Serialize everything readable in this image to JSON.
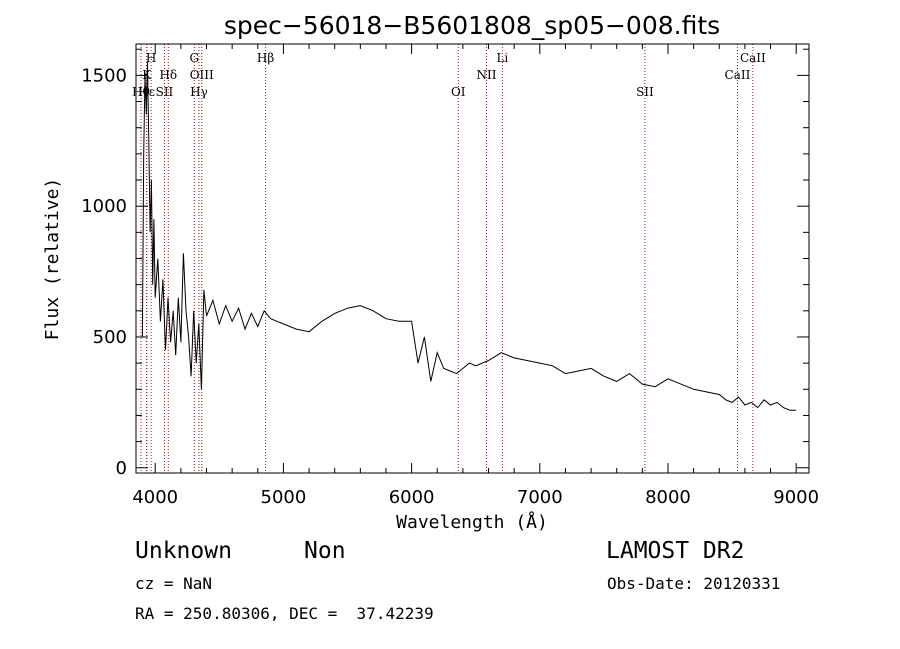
{
  "chart_data": {
    "type": "line",
    "title": "spec−56018−B5601808_sp05−008.fits",
    "xlabel": "Wavelength (Å)",
    "ylabel": "Flux (relative)",
    "xlim": [
      3850,
      9100
    ],
    "ylim": [
      -20,
      1620
    ],
    "x_ticks": [
      4000,
      5000,
      6000,
      7000,
      8000,
      9000
    ],
    "x_tick_labels": [
      "4000",
      "5000",
      "6000",
      "7000",
      "8000",
      "9000"
    ],
    "y_ticks": [
      0,
      500,
      1000,
      1500
    ],
    "y_tick_labels": [
      "0",
      "500",
      "1000",
      "1500"
    ],
    "grid": false,
    "series": [
      {
        "color": "#000000",
        "x": [
          3860,
          3870,
          3880,
          3890,
          3900,
          3910,
          3920,
          3930,
          3940,
          3950,
          3960,
          3970,
          3980,
          3990,
          4000,
          4020,
          4040,
          4060,
          4080,
          4100,
          4120,
          4140,
          4160,
          4180,
          4200,
          4220,
          4240,
          4260,
          4280,
          4300,
          4320,
          4340,
          4360,
          4380,
          4400,
          4450,
          4500,
          4550,
          4600,
          4650,
          4700,
          4750,
          4800,
          4850,
          4900,
          4950,
          5000,
          5100,
          5200,
          5300,
          5400,
          5500,
          5600,
          5700,
          5800,
          5900,
          6000,
          6050,
          6100,
          6150,
          6200,
          6250,
          6300,
          6350,
          6400,
          6450,
          6500,
          6600,
          6700,
          6800,
          6900,
          7000,
          7100,
          7200,
          7300,
          7400,
          7500,
          7600,
          7700,
          7800,
          7900,
          8000,
          8100,
          8200,
          8300,
          8400,
          8450,
          8500,
          8550,
          8600,
          8650,
          8700,
          8750,
          8800,
          8850,
          8900,
          8950,
          9000
        ],
        "y": [
          500,
          500,
          500,
          500,
          500,
          1200,
          1500,
          1350,
          1550,
          1250,
          900,
          1100,
          700,
          950,
          650,
          800,
          560,
          720,
          450,
          650,
          480,
          600,
          430,
          650,
          480,
          820,
          600,
          500,
          350,
          600,
          400,
          550,
          300,
          680,
          580,
          640,
          550,
          620,
          560,
          610,
          530,
          590,
          540,
          600,
          570,
          560,
          550,
          530,
          520,
          560,
          590,
          610,
          620,
          600,
          570,
          560,
          560,
          400,
          500,
          330,
          440,
          380,
          370,
          360,
          380,
          400,
          390,
          410,
          440,
          420,
          410,
          400,
          390,
          360,
          370,
          380,
          350,
          330,
          360,
          320,
          310,
          340,
          320,
          300,
          290,
          280,
          260,
          250,
          270,
          240,
          250,
          230,
          260,
          240,
          250,
          230,
          220,
          220
        ]
      }
    ],
    "line_markers": [
      {
        "label": "Hθ",
        "x": 3889
      },
      {
        "label": "Hε",
        "x": 3933
      },
      {
        "label": "K",
        "x": 3934
      },
      {
        "label": "H",
        "x": 3968
      },
      {
        "label": "SII",
        "x": 4072
      },
      {
        "label": "Hδ",
        "x": 4102
      },
      {
        "label": "G",
        "x": 4305
      },
      {
        "label": "Hγ",
        "x": 4341
      },
      {
        "label": "OIII",
        "x": 4363
      },
      {
        "label": "Hβ",
        "x": 4861
      },
      {
        "label": "OI",
        "x": 6364
      },
      {
        "label": "NII",
        "x": 6584
      },
      {
        "label": "Li",
        "x": 6708
      },
      {
        "label": "SII",
        "x": 7820
      },
      {
        "label": "CaII",
        "x": 8542
      },
      {
        "label": "CaII",
        "x": 8662
      }
    ],
    "marker_color": "#8b1a1a"
  },
  "info": {
    "class": "Unknown",
    "subclass": "Non",
    "survey": "LAMOST DR2",
    "cz": "cz = NaN",
    "obs_date": "Obs-Date: 20120331",
    "coords": "RA = 250.80306, DEC =  37.42239"
  }
}
